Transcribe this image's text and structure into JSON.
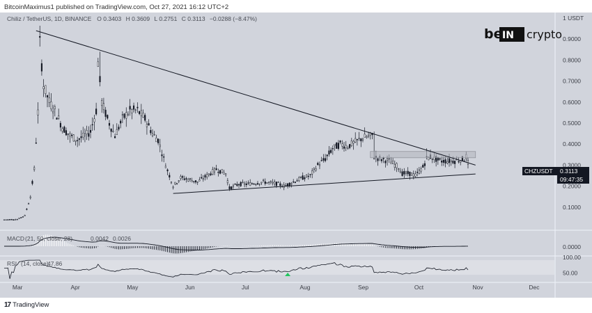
{
  "publish_line": "BitcoinMaximus1 published on TradingView.com, Oct 27, 2021 16:12 UTC+2",
  "footer_brand": "TradingView",
  "brand": {
    "left": "be",
    "middle": "IN",
    "right": "crypto"
  },
  "colors": {
    "background": "#d1d4dc",
    "line": "#131722",
    "candle": "#131722",
    "box": "#b2b5be",
    "rsi_marker": "#22c55e"
  },
  "chart_data": {
    "type": "candlestick",
    "symbol": "Chiliz / TetherUS, 1D, BINANCE",
    "ohlc_header": {
      "o_label": "O",
      "o": "0.3403",
      "h_label": "H",
      "h": "0.3609",
      "l_label": "L",
      "l": "0.2751",
      "c_label": "C",
      "c": "0.3113",
      "change": "−0.0288 (−8.47%)"
    },
    "price_label": {
      "symbol": "CHZUSDT",
      "price": "0.3113",
      "countdown": "09:47:35"
    },
    "y_axis": {
      "unit": "USDT",
      "range": [
        0,
        1.0
      ],
      "ticks": [
        "1 USDT",
        "0.9000",
        "0.8000",
        "0.7000",
        "0.6000",
        "0.5000",
        "0.4000",
        "0.3000",
        "0.2000",
        "0.1000"
      ],
      "tick_values": [
        1.0,
        0.9,
        0.8,
        0.7,
        0.6,
        0.5,
        0.4,
        0.3,
        0.2,
        0.1
      ]
    },
    "x_axis": {
      "labels": [
        "Mar",
        "Apr",
        "May",
        "Jun",
        "Jul",
        "Aug",
        "Sep",
        "Oct",
        "Nov",
        "Dec"
      ],
      "dates": [
        "2021-03-01",
        "2021-04-01",
        "2021-05-01",
        "2021-06-01",
        "2021-07-01",
        "2021-08-01",
        "2021-09-01",
        "2021-10-01",
        "2021-11-01",
        "2021-12-01"
      ],
      "start": "2021-02-22",
      "end": "2021-12-12"
    },
    "series": [
      {
        "name": "CHZUSDT",
        "keypoints": [
          [
            "2021-02-22",
            0.04
          ],
          [
            "2021-03-01",
            0.042
          ],
          [
            "2021-03-05",
            0.06
          ],
          [
            "2021-03-08",
            0.15
          ],
          [
            "2021-03-10",
            0.28
          ],
          [
            "2021-03-12",
            0.55
          ],
          [
            "2021-03-13",
            0.88
          ],
          [
            "2021-03-15",
            0.68
          ],
          [
            "2021-03-18",
            0.6
          ],
          [
            "2021-03-21",
            0.56
          ],
          [
            "2021-03-25",
            0.48
          ],
          [
            "2021-03-29",
            0.44
          ],
          [
            "2021-04-02",
            0.42
          ],
          [
            "2021-04-06",
            0.44
          ],
          [
            "2021-04-09",
            0.46
          ],
          [
            "2021-04-12",
            0.56
          ],
          [
            "2021-04-13",
            0.79
          ],
          [
            "2021-04-15",
            0.6
          ],
          [
            "2021-04-18",
            0.52
          ],
          [
            "2021-04-22",
            0.44
          ],
          [
            "2021-04-26",
            0.52
          ],
          [
            "2021-04-30",
            0.56
          ],
          [
            "2021-05-04",
            0.56
          ],
          [
            "2021-05-08",
            0.52
          ],
          [
            "2021-05-12",
            0.45
          ],
          [
            "2021-05-15",
            0.42
          ],
          [
            "2021-05-19",
            0.3
          ],
          [
            "2021-05-23",
            0.2
          ],
          [
            "2021-05-27",
            0.24
          ],
          [
            "2021-06-01",
            0.23
          ],
          [
            "2021-06-05",
            0.22
          ],
          [
            "2021-06-10",
            0.25
          ],
          [
            "2021-06-15",
            0.28
          ],
          [
            "2021-06-20",
            0.26
          ],
          [
            "2021-06-22",
            0.19
          ],
          [
            "2021-06-27",
            0.21
          ],
          [
            "2021-07-02",
            0.21
          ],
          [
            "2021-07-10",
            0.22
          ],
          [
            "2021-07-18",
            0.21
          ],
          [
            "2021-07-21",
            0.2
          ],
          [
            "2021-07-26",
            0.22
          ],
          [
            "2021-07-31",
            0.24
          ],
          [
            "2021-08-04",
            0.25
          ],
          [
            "2021-08-08",
            0.3
          ],
          [
            "2021-08-12",
            0.33
          ],
          [
            "2021-08-16",
            0.38
          ],
          [
            "2021-08-20",
            0.4
          ],
          [
            "2021-08-24",
            0.39
          ],
          [
            "2021-08-30",
            0.42
          ],
          [
            "2021-09-01",
            0.43
          ],
          [
            "2021-09-06",
            0.44
          ],
          [
            "2021-09-07",
            0.34
          ],
          [
            "2021-09-10",
            0.33
          ],
          [
            "2021-09-15",
            0.32
          ],
          [
            "2021-09-20",
            0.29
          ],
          [
            "2021-09-22",
            0.26
          ],
          [
            "2021-09-26",
            0.26
          ],
          [
            "2021-09-29",
            0.25
          ],
          [
            "2021-10-03",
            0.29
          ],
          [
            "2021-10-05",
            0.33
          ],
          [
            "2021-10-07",
            0.34
          ],
          [
            "2021-10-12",
            0.32
          ],
          [
            "2021-10-16",
            0.32
          ],
          [
            "2021-10-20",
            0.32
          ],
          [
            "2021-10-25",
            0.33
          ],
          [
            "2021-10-26",
            0.34
          ],
          [
            "2021-10-27",
            0.311
          ]
        ]
      }
    ],
    "annotations": {
      "descending_resistance": [
        [
          "2021-03-11",
          0.94
        ],
        [
          "2021-10-31",
          0.3
        ]
      ],
      "ascending_support": [
        [
          "2021-05-23",
          0.165
        ],
        [
          "2021-10-31",
          0.258
        ]
      ],
      "horizontal_zone": {
        "start": "2021-09-05",
        "end": "2021-10-31",
        "low": 0.335,
        "high": 0.365
      }
    },
    "macd": {
      "title": "MACD",
      "params": "21, 50, close, 28",
      "values": [
        "0.0042",
        "0.0026"
      ],
      "zero_label": "0.0000"
    },
    "rsi": {
      "title": "RSI",
      "params": "14, close",
      "value": "47.86",
      "ticks": [
        "100.00",
        "50.00"
      ]
    }
  }
}
